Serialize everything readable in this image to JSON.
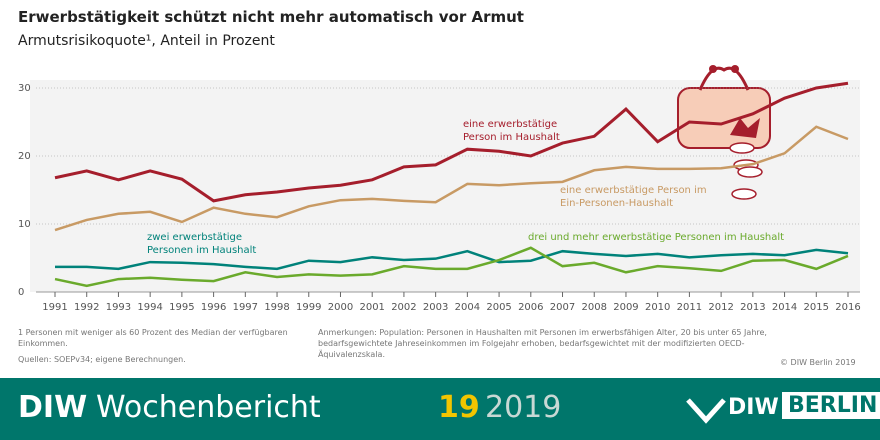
{
  "chart_data": {
    "type": "line",
    "title": "Erwerbstätigkeit schützt nicht mehr automatisch vor Armut",
    "subtitle": "Armutsrisikoquote¹, Anteil in Prozent",
    "x": [
      1991,
      1992,
      1993,
      1994,
      1995,
      1996,
      1997,
      1998,
      1999,
      2000,
      2001,
      2002,
      2003,
      2004,
      2005,
      2006,
      2007,
      2008,
      2009,
      2010,
      2011,
      2012,
      2013,
      2014,
      2015,
      2016
    ],
    "xlim": [
      1991,
      2016
    ],
    "xticks": [
      1991,
      1992,
      1993,
      1994,
      1995,
      1996,
      1997,
      1998,
      1999,
      2000,
      2001,
      2002,
      2003,
      2004,
      2005,
      2006,
      2007,
      2008,
      2009,
      2010,
      2011,
      2012,
      2013,
      2014,
      2015,
      2016
    ],
    "ylim": [
      0,
      30
    ],
    "yticks": [
      0,
      10,
      20,
      30
    ],
    "grid": true,
    "series": [
      {
        "name": "eine erwerbstätige Person im Haushalt",
        "color": "#a51e2c",
        "values": [
          16.8,
          17.8,
          16.5,
          17.8,
          16.6,
          13.4,
          14.3,
          14.7,
          15.3,
          15.7,
          16.5,
          18.4,
          18.7,
          21.0,
          20.7,
          20.0,
          21.9,
          22.9,
          26.9,
          22.1,
          25.0,
          24.7,
          26.2,
          28.5,
          30.0,
          30.7
        ]
      },
      {
        "name": "eine erwerbstätige Person im Ein-Personen-Haushalt",
        "color": "#c89a64",
        "values": [
          9.1,
          10.6,
          11.5,
          11.8,
          10.3,
          12.4,
          11.5,
          11.0,
          12.6,
          13.5,
          13.7,
          13.4,
          13.2,
          15.9,
          15.7,
          16.0,
          16.2,
          17.9,
          18.4,
          18.1,
          18.1,
          18.2,
          18.8,
          20.4,
          24.3,
          22.5
        ]
      },
      {
        "name": "zwei erwerbstätige Personen im Haushalt",
        "color": "#00827a",
        "values": [
          3.7,
          3.7,
          3.4,
          4.4,
          4.3,
          4.1,
          3.7,
          3.4,
          4.6,
          4.4,
          5.1,
          4.7,
          4.9,
          6.0,
          4.4,
          4.6,
          6.0,
          5.6,
          5.3,
          5.6,
          5.1,
          5.4,
          5.6,
          5.4,
          6.2,
          5.7
        ]
      },
      {
        "name": "drei und mehr erwerbstätige Personen im Haushalt",
        "color": "#6aaa2c",
        "values": [
          1.9,
          0.9,
          1.9,
          2.1,
          1.8,
          1.6,
          2.9,
          2.2,
          2.6,
          2.4,
          2.6,
          3.8,
          3.4,
          3.4,
          4.7,
          6.5,
          3.8,
          4.3,
          2.9,
          3.8,
          3.5,
          3.1,
          4.6,
          4.7,
          3.4,
          5.3
        ]
      }
    ]
  },
  "notes": {
    "footnote": "1   Personen mit weniger als 60 Prozent des Median der verfügbaren Einkommen.",
    "remarks": "Anmerkungen: Population: Personen in Haushalten mit Personen im erwerbsfähigen Alter, 20 bis unter 65 Jahre, bedarfsgewichtete Jahreseinkommen im Folgejahr erhoben, bedarfsgewichtet mit der modifizierten OECD-Äquivalenzskala.",
    "sources": "Quellen: SOEPv34; eigene Berechnungen.",
    "copyright": "© DIW Berlin 2019"
  },
  "footer": {
    "brand": "DIW",
    "publication": "Wochenbericht",
    "issue": "19",
    "year": "2019",
    "logo_left": "DIW",
    "logo_right": "BERLIN"
  }
}
